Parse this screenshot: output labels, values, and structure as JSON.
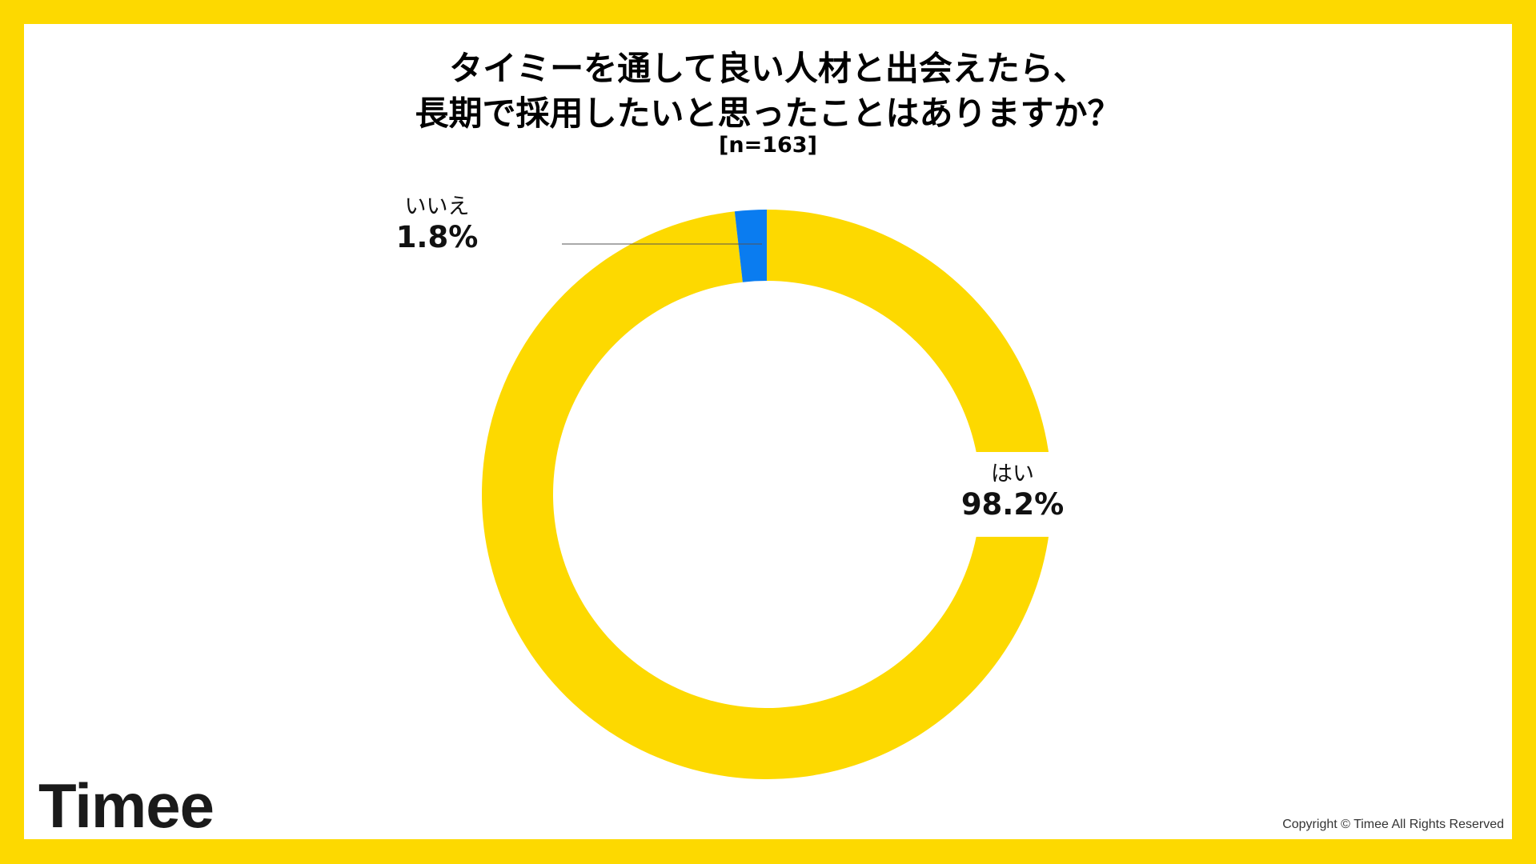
{
  "chart_data": {
    "type": "pie",
    "donut": true,
    "title_lines": [
      "タイミーを通して良い人材と出会えたら、",
      "長期で採用したいと思ったことはありますか？"
    ],
    "subtitle": "[n=163]",
    "slices": [
      {
        "label": "はい",
        "value": 98.2,
        "value_label": "98.2%",
        "color": "#FDD900"
      },
      {
        "label": "いいえ",
        "value": 1.8,
        "value_label": "1.8%",
        "color": "#0A7CF0"
      }
    ]
  },
  "footer": {
    "logo": "Timee",
    "copyright": "Copyright © Timee All Rights Reserved"
  },
  "colors": {
    "frame": "#FDD900",
    "background": "#FFFFFF"
  }
}
